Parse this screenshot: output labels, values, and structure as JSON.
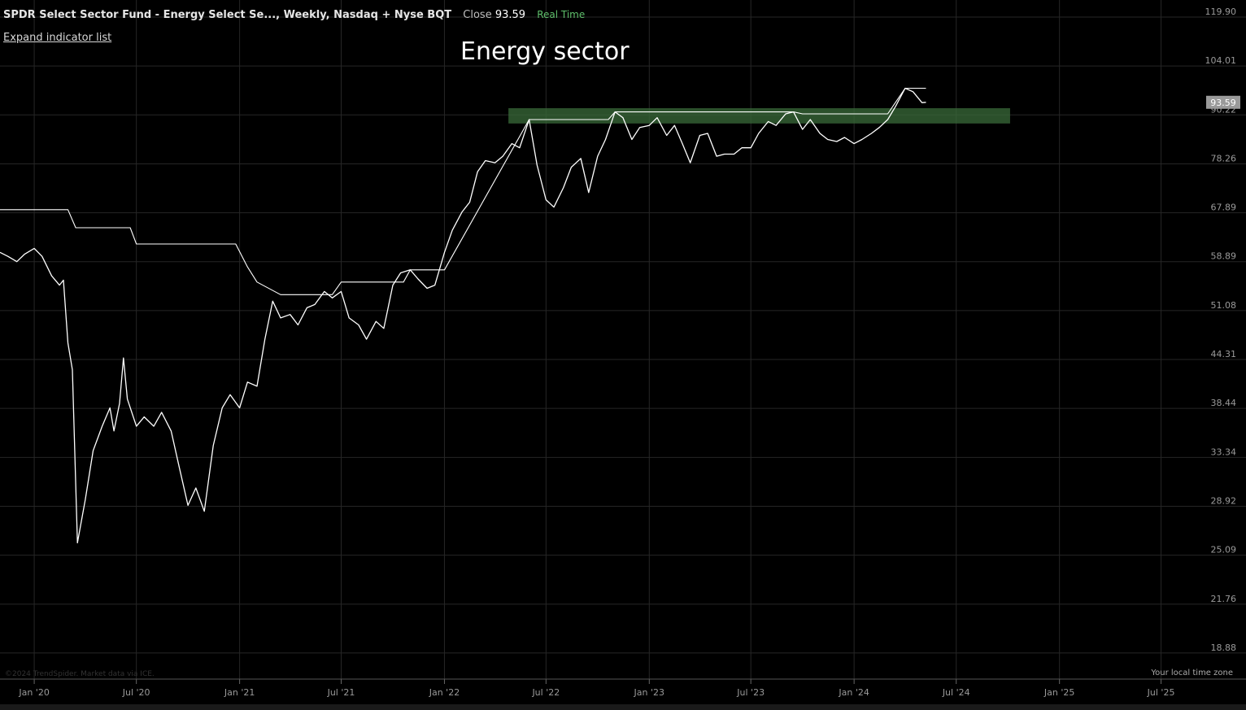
{
  "header": {
    "symbol": "SPDR Select Sector Fund - Energy Select Se..., Weekly, Nasdaq + Nyse BQT",
    "close_label": "Close",
    "close_value": "93.59",
    "realtime": "Real Time"
  },
  "expand_label": "Expand indicator list",
  "annotation": "Energy sector",
  "credit": "©2024 TrendSpider. Market data via ICE.",
  "timezone_label": "Your local time zone",
  "colors": {
    "background": "#000000",
    "price_line": "#ffffff",
    "zone": "#3a6b3a",
    "grid": "#262626",
    "last_price_badge": "#9a9a9a"
  },
  "chart_data": {
    "type": "line",
    "title": "Energy sector",
    "scale": "log",
    "ylim": [
      17.5,
      126
    ],
    "y_ticks": [
      "119.90",
      "104.01",
      "90.22",
      "78.26",
      "67.89",
      "58.89",
      "51.08",
      "44.31",
      "38.44",
      "33.34",
      "28.92",
      "25.09",
      "21.76",
      "18.88"
    ],
    "y_tick_values": [
      119.9,
      104.01,
      90.22,
      78.26,
      67.89,
      58.89,
      51.08,
      44.31,
      38.44,
      33.34,
      28.92,
      25.09,
      21.76,
      18.88
    ],
    "x_ticks": [
      "Jan '20",
      "Jul '20",
      "Jan '21",
      "Jul '21",
      "Jan '22",
      "Jul '22",
      "Jan '23",
      "Jul '23",
      "Jan '24",
      "Jul '24",
      "Jan '25",
      "Jul '25"
    ],
    "xlim": [
      "2019-11-01",
      "2025-09-15"
    ],
    "last_price": 93.59,
    "series": [
      {
        "style": "price",
        "points": [
          [
            "2019-11-01",
            60.5
          ],
          [
            "2019-11-15",
            59.8
          ],
          [
            "2019-12-01",
            58.9
          ],
          [
            "2019-12-15",
            60.2
          ],
          [
            "2020-01-01",
            61.2
          ],
          [
            "2020-01-15",
            59.8
          ],
          [
            "2020-02-01",
            56.5
          ],
          [
            "2020-02-15",
            55.0
          ],
          [
            "2020-02-22",
            55.8
          ],
          [
            "2020-03-01",
            46.5
          ],
          [
            "2020-03-09",
            43.0
          ],
          [
            "2020-03-18",
            26.0
          ],
          [
            "2020-04-01",
            29.5
          ],
          [
            "2020-04-15",
            34.0
          ],
          [
            "2020-05-01",
            36.5
          ],
          [
            "2020-05-15",
            38.5
          ],
          [
            "2020-05-22",
            36.0
          ],
          [
            "2020-06-01",
            39.0
          ],
          [
            "2020-06-08",
            44.5
          ],
          [
            "2020-06-15",
            39.5
          ],
          [
            "2020-07-01",
            36.5
          ],
          [
            "2020-07-15",
            37.5
          ],
          [
            "2020-08-01",
            36.5
          ],
          [
            "2020-08-15",
            38.0
          ],
          [
            "2020-09-01",
            36.0
          ],
          [
            "2020-09-15",
            32.5
          ],
          [
            "2020-10-01",
            29.0
          ],
          [
            "2020-10-15",
            30.5
          ],
          [
            "2020-10-30",
            28.5
          ],
          [
            "2020-11-15",
            34.5
          ],
          [
            "2020-12-01",
            38.5
          ],
          [
            "2020-12-15",
            40.0
          ],
          [
            "2021-01-01",
            38.5
          ],
          [
            "2021-01-15",
            41.5
          ],
          [
            "2021-02-01",
            41.0
          ],
          [
            "2021-02-15",
            47.0
          ],
          [
            "2021-03-01",
            52.5
          ],
          [
            "2021-03-15",
            50.0
          ],
          [
            "2021-04-01",
            50.5
          ],
          [
            "2021-04-15",
            49.0
          ],
          [
            "2021-05-01",
            51.5
          ],
          [
            "2021-05-15",
            52.0
          ],
          [
            "2021-06-01",
            54.0
          ],
          [
            "2021-06-15",
            53.0
          ],
          [
            "2021-07-01",
            54.0
          ],
          [
            "2021-07-15",
            50.0
          ],
          [
            "2021-08-01",
            49.0
          ],
          [
            "2021-08-15",
            47.0
          ],
          [
            "2021-09-01",
            49.5
          ],
          [
            "2021-09-15",
            48.5
          ],
          [
            "2021-10-01",
            55.0
          ],
          [
            "2021-10-15",
            57.0
          ],
          [
            "2021-11-01",
            57.5
          ],
          [
            "2021-11-15",
            56.0
          ],
          [
            "2021-12-01",
            54.5
          ],
          [
            "2021-12-15",
            55.0
          ],
          [
            "2022-01-01",
            60.5
          ],
          [
            "2022-01-15",
            64.5
          ],
          [
            "2022-02-01",
            68.0
          ],
          [
            "2022-02-15",
            70.0
          ],
          [
            "2022-03-01",
            76.5
          ],
          [
            "2022-03-15",
            79.0
          ],
          [
            "2022-04-01",
            78.5
          ],
          [
            "2022-04-15",
            80.0
          ],
          [
            "2022-05-01",
            83.0
          ],
          [
            "2022-05-15",
            82.0
          ],
          [
            "2022-06-01",
            89.0
          ],
          [
            "2022-06-15",
            78.0
          ],
          [
            "2022-07-01",
            70.5
          ],
          [
            "2022-07-15",
            69.0
          ],
          [
            "2022-08-01",
            73.0
          ],
          [
            "2022-08-15",
            77.5
          ],
          [
            "2022-09-01",
            79.5
          ],
          [
            "2022-09-15",
            72.0
          ],
          [
            "2022-10-01",
            80.0
          ],
          [
            "2022-10-15",
            84.0
          ],
          [
            "2022-11-01",
            91.0
          ],
          [
            "2022-11-15",
            89.5
          ],
          [
            "2022-12-01",
            84.0
          ],
          [
            "2022-12-15",
            87.0
          ],
          [
            "2023-01-01",
            87.5
          ],
          [
            "2023-01-15",
            89.5
          ],
          [
            "2023-02-01",
            85.0
          ],
          [
            "2023-02-15",
            87.5
          ],
          [
            "2023-03-01",
            83.0
          ],
          [
            "2023-03-15",
            78.5
          ],
          [
            "2023-04-01",
            85.0
          ],
          [
            "2023-04-15",
            85.5
          ],
          [
            "2023-05-01",
            80.0
          ],
          [
            "2023-05-15",
            80.5
          ],
          [
            "2023-06-01",
            80.5
          ],
          [
            "2023-06-15",
            82.0
          ],
          [
            "2023-07-01",
            82.0
          ],
          [
            "2023-07-15",
            85.5
          ],
          [
            "2023-08-01",
            88.5
          ],
          [
            "2023-08-15",
            87.5
          ],
          [
            "2023-09-01",
            90.5
          ],
          [
            "2023-09-15",
            91.0
          ],
          [
            "2023-10-01",
            86.5
          ],
          [
            "2023-10-15",
            89.0
          ],
          [
            "2023-11-01",
            85.5
          ],
          [
            "2023-11-15",
            84.0
          ],
          [
            "2023-12-01",
            83.5
          ],
          [
            "2023-12-15",
            84.5
          ],
          [
            "2024-01-01",
            83.0
          ],
          [
            "2024-01-15",
            84.0
          ],
          [
            "2024-02-01",
            85.5
          ],
          [
            "2024-02-15",
            87.0
          ],
          [
            "2024-03-01",
            89.0
          ],
          [
            "2024-03-15",
            92.5
          ],
          [
            "2024-04-01",
            97.5
          ],
          [
            "2024-04-15",
            96.5
          ],
          [
            "2024-05-01",
            93.5
          ],
          [
            "2024-05-08",
            93.59
          ]
        ]
      },
      {
        "style": "trailing",
        "points": [
          [
            "2019-11-01",
            68.5
          ],
          [
            "2020-03-01",
            68.5
          ],
          [
            "2020-03-15",
            65.0
          ],
          [
            "2020-06-20",
            65.0
          ],
          [
            "2020-07-01",
            62.0
          ],
          [
            "2020-12-25",
            62.0
          ],
          [
            "2021-01-15",
            58.0
          ],
          [
            "2021-02-01",
            55.5
          ],
          [
            "2021-03-15",
            53.5
          ],
          [
            "2021-06-15",
            53.5
          ],
          [
            "2021-07-01",
            55.5
          ],
          [
            "2021-10-20",
            55.5
          ],
          [
            "2021-11-01",
            57.5
          ],
          [
            "2022-01-01",
            57.5
          ],
          [
            "2022-06-01",
            89.0
          ],
          [
            "2022-10-20",
            89.0
          ],
          [
            "2022-11-01",
            91.0
          ],
          [
            "2023-09-15",
            91.0
          ],
          [
            "2023-10-01",
            90.5
          ],
          [
            "2024-03-01",
            90.5
          ],
          [
            "2024-04-01",
            97.5
          ],
          [
            "2024-05-08",
            97.5
          ]
        ]
      }
    ],
    "zone": {
      "y_range": [
        88.0,
        92.0
      ],
      "x_range": [
        "2022-04-25",
        "2024-10-05"
      ]
    }
  }
}
